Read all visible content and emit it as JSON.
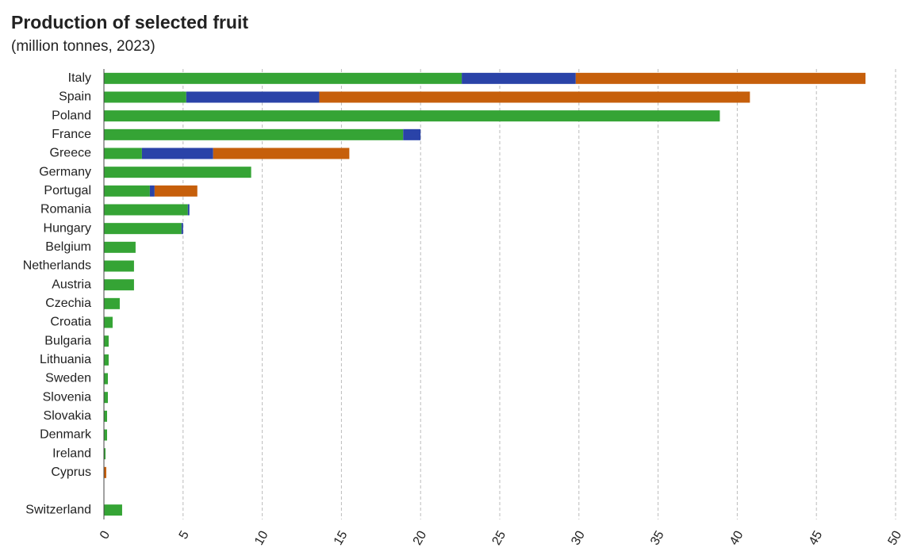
{
  "chart_data": {
    "type": "stacked-barh",
    "title": "Production of selected fruit",
    "subtitle": "(million tonnes, 2023)",
    "categories": [
      "Italy",
      "Spain",
      "Poland",
      "France",
      "Greece",
      "Germany",
      "Portugal",
      "Romania",
      "Hungary",
      "Belgium",
      "Netherlands",
      "Austria",
      "Czechia",
      "Croatia",
      "Bulgaria",
      "Lithuania",
      "Sweden",
      "Slovenia",
      "Slovakia",
      "Denmark",
      "Ireland",
      "Cyprus",
      null,
      "Switzerland"
    ],
    "series": [
      {
        "color": "#35a435",
        "values": [
          22.6,
          5.2,
          38.9,
          18.9,
          2.4,
          9.3,
          2.9,
          5.3,
          4.9,
          2.0,
          1.9,
          1.9,
          1.0,
          0.55,
          0.3,
          0.3,
          0.25,
          0.25,
          0.2,
          0.2,
          0.1,
          0,
          null,
          1.15
        ]
      },
      {
        "color": "#2a43a8",
        "values": [
          7.2,
          8.4,
          0,
          1.1,
          4.5,
          0,
          0.3,
          0.1,
          0.1,
          0,
          0,
          0,
          0,
          0,
          0,
          0,
          0,
          0,
          0,
          0,
          0,
          0,
          null,
          0
        ]
      },
      {
        "color": "#c65f0b",
        "values": [
          18.3,
          27.2,
          0,
          0,
          8.6,
          0,
          2.7,
          0,
          0,
          0,
          0,
          0,
          0,
          0,
          0,
          0,
          0,
          0,
          0,
          0,
          0,
          0.15,
          null,
          0
        ]
      }
    ],
    "xlim": [
      0,
      50
    ],
    "xticks": [
      0,
      5,
      10,
      15,
      20,
      25,
      30,
      35,
      40,
      45,
      50
    ],
    "grid": true
  }
}
